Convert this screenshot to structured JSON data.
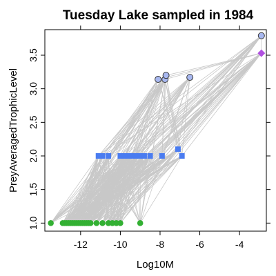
{
  "chart_data": {
    "type": "scatter",
    "title": "Tuesday Lake sampled in 1984",
    "xlabel": "Log10M",
    "ylabel": "PreyAveragedTrophicLevel",
    "xlim": [
      -13.8,
      -2.65
    ],
    "ylim": [
      0.88,
      3.88
    ],
    "x_ticks": [
      -12,
      -10,
      -8,
      -6,
      -4
    ],
    "y_ticks": [
      1.0,
      1.5,
      2.0,
      2.5,
      3.0,
      3.5
    ],
    "x_tick_labels": [
      "-12",
      "-10",
      "-8",
      "-6",
      "-4"
    ],
    "y_tick_labels": [
      "1.0",
      "1.5",
      "2.0",
      "2.5",
      "3.0",
      "3.5"
    ],
    "grid": false,
    "edge_color": "#c8c8c8",
    "series": [
      {
        "name": "",
        "marker": "circle",
        "color": "#33b033",
        "points": [
          [
            -13.5,
            1.0
          ],
          [
            -12.9,
            1.0
          ],
          [
            -12.8,
            1.0
          ],
          [
            -12.7,
            1.0
          ],
          [
            -12.6,
            1.0
          ],
          [
            -12.5,
            1.0
          ],
          [
            -12.4,
            1.0
          ],
          [
            -12.3,
            1.0
          ],
          [
            -12.2,
            1.0
          ],
          [
            -12.1,
            1.0
          ],
          [
            -12.0,
            1.0
          ],
          [
            -11.9,
            1.0
          ],
          [
            -11.8,
            1.0
          ],
          [
            -11.7,
            1.0
          ],
          [
            -11.6,
            1.0
          ],
          [
            -11.5,
            1.0
          ],
          [
            -11.2,
            1.0
          ],
          [
            -10.9,
            1.0
          ],
          [
            -10.6,
            1.0
          ],
          [
            -10.4,
            1.0
          ],
          [
            -10.2,
            1.0
          ],
          [
            -10.0,
            1.0
          ],
          [
            -9.0,
            1.0
          ]
        ]
      },
      {
        "name": "",
        "marker": "square",
        "color": "#4a7cf0",
        "points": [
          [
            -11.1,
            2.0
          ],
          [
            -10.9,
            2.0
          ],
          [
            -10.6,
            2.0
          ],
          [
            -10.0,
            2.0
          ],
          [
            -9.8,
            2.0
          ],
          [
            -9.6,
            2.0
          ],
          [
            -9.4,
            2.0
          ],
          [
            -9.2,
            2.0
          ],
          [
            -9.0,
            2.0
          ],
          [
            -8.8,
            2.0
          ],
          [
            -8.5,
            2.0
          ],
          [
            -7.9,
            2.0
          ],
          [
            -7.1,
            2.1
          ],
          [
            -6.9,
            2.0
          ]
        ]
      },
      {
        "name": "",
        "marker": "circle-outline",
        "color": "#a8b8f0",
        "points": [
          [
            -8.1,
            3.14
          ],
          [
            -7.75,
            3.14
          ],
          [
            -7.7,
            3.2
          ],
          [
            -6.5,
            3.17
          ],
          [
            -2.9,
            3.79
          ]
        ]
      },
      {
        "name": "",
        "marker": "diamond",
        "color": "#b050e0",
        "points": [
          [
            -2.9,
            3.53
          ]
        ]
      }
    ]
  }
}
